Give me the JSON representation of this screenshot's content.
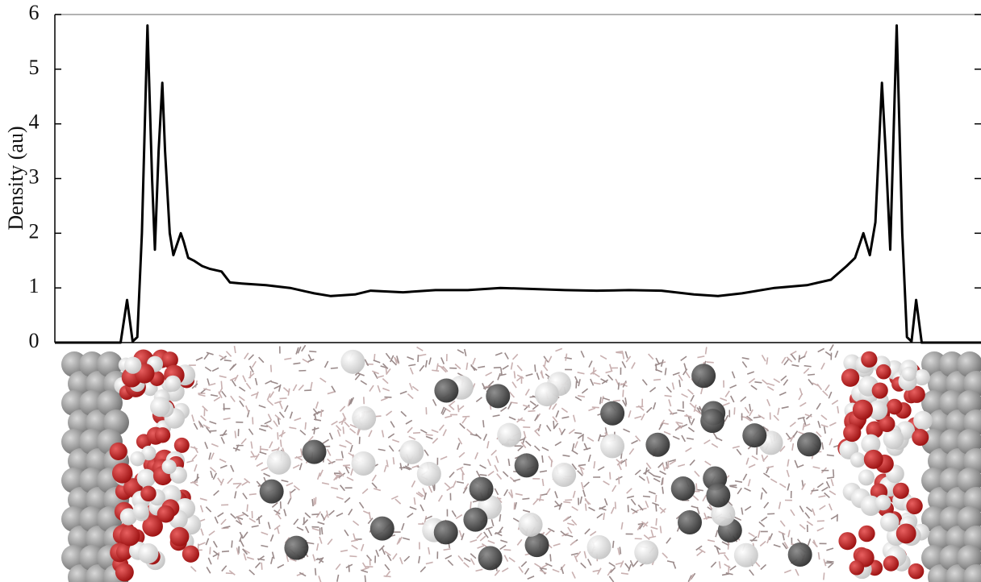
{
  "chart_data": {
    "type": "line",
    "y_label": "Density (au)",
    "x": [
      0,
      6.7,
      7.1,
      7.8,
      8.4,
      8.9,
      9.4,
      10.0,
      10.5,
      10.8,
      11.2,
      11.6,
      11.9,
      12.4,
      12.8,
      13.2,
      13.6,
      13.9,
      14.4,
      15.0,
      15.9,
      16.7,
      18.0,
      18.9,
      20.2,
      22.8,
      25.4,
      28.0,
      29.8,
      32.4,
      34.1,
      37.6,
      41.1,
      44.6,
      48.1,
      51.6,
      55.1,
      58.5,
      62.0,
      65.5,
      69.0,
      71.6,
      74.2,
      77.7,
      81.2,
      83.8,
      85.5,
      86.4,
      87.3,
      88.0,
      88.6,
      89.3,
      89.7,
      90.2,
      90.9,
      91.5,
      92.0,
      92.5,
      93.0,
      93.6,
      100
    ],
    "series": [
      {
        "color": "#000000",
        "values": [
          0,
          0,
          0,
          0.78,
          0.02,
          0.1,
          2,
          5.8,
          3,
          1.7,
          3.5,
          4.75,
          3.5,
          2,
          1.6,
          1.8,
          2.0,
          1.85,
          1.55,
          1.5,
          1.4,
          1.35,
          1.3,
          1.1,
          1.08,
          1.05,
          1.0,
          0.9,
          0.85,
          0.88,
          0.95,
          0.92,
          0.96,
          0.96,
          1.0,
          0.98,
          0.96,
          0.95,
          0.96,
          0.95,
          0.88,
          0.85,
          0.9,
          1.0,
          1.05,
          1.15,
          1.4,
          1.55,
          2.0,
          1.6,
          2.2,
          4.75,
          3.5,
          1.7,
          5.8,
          2,
          0.1,
          0.02,
          0.78,
          0,
          0
        ]
      }
    ],
    "xlim": [
      0,
      100
    ],
    "ylim": [
      0,
      6
    ],
    "yticks": [
      0,
      1,
      2,
      3,
      4,
      5,
      6
    ]
  }
}
